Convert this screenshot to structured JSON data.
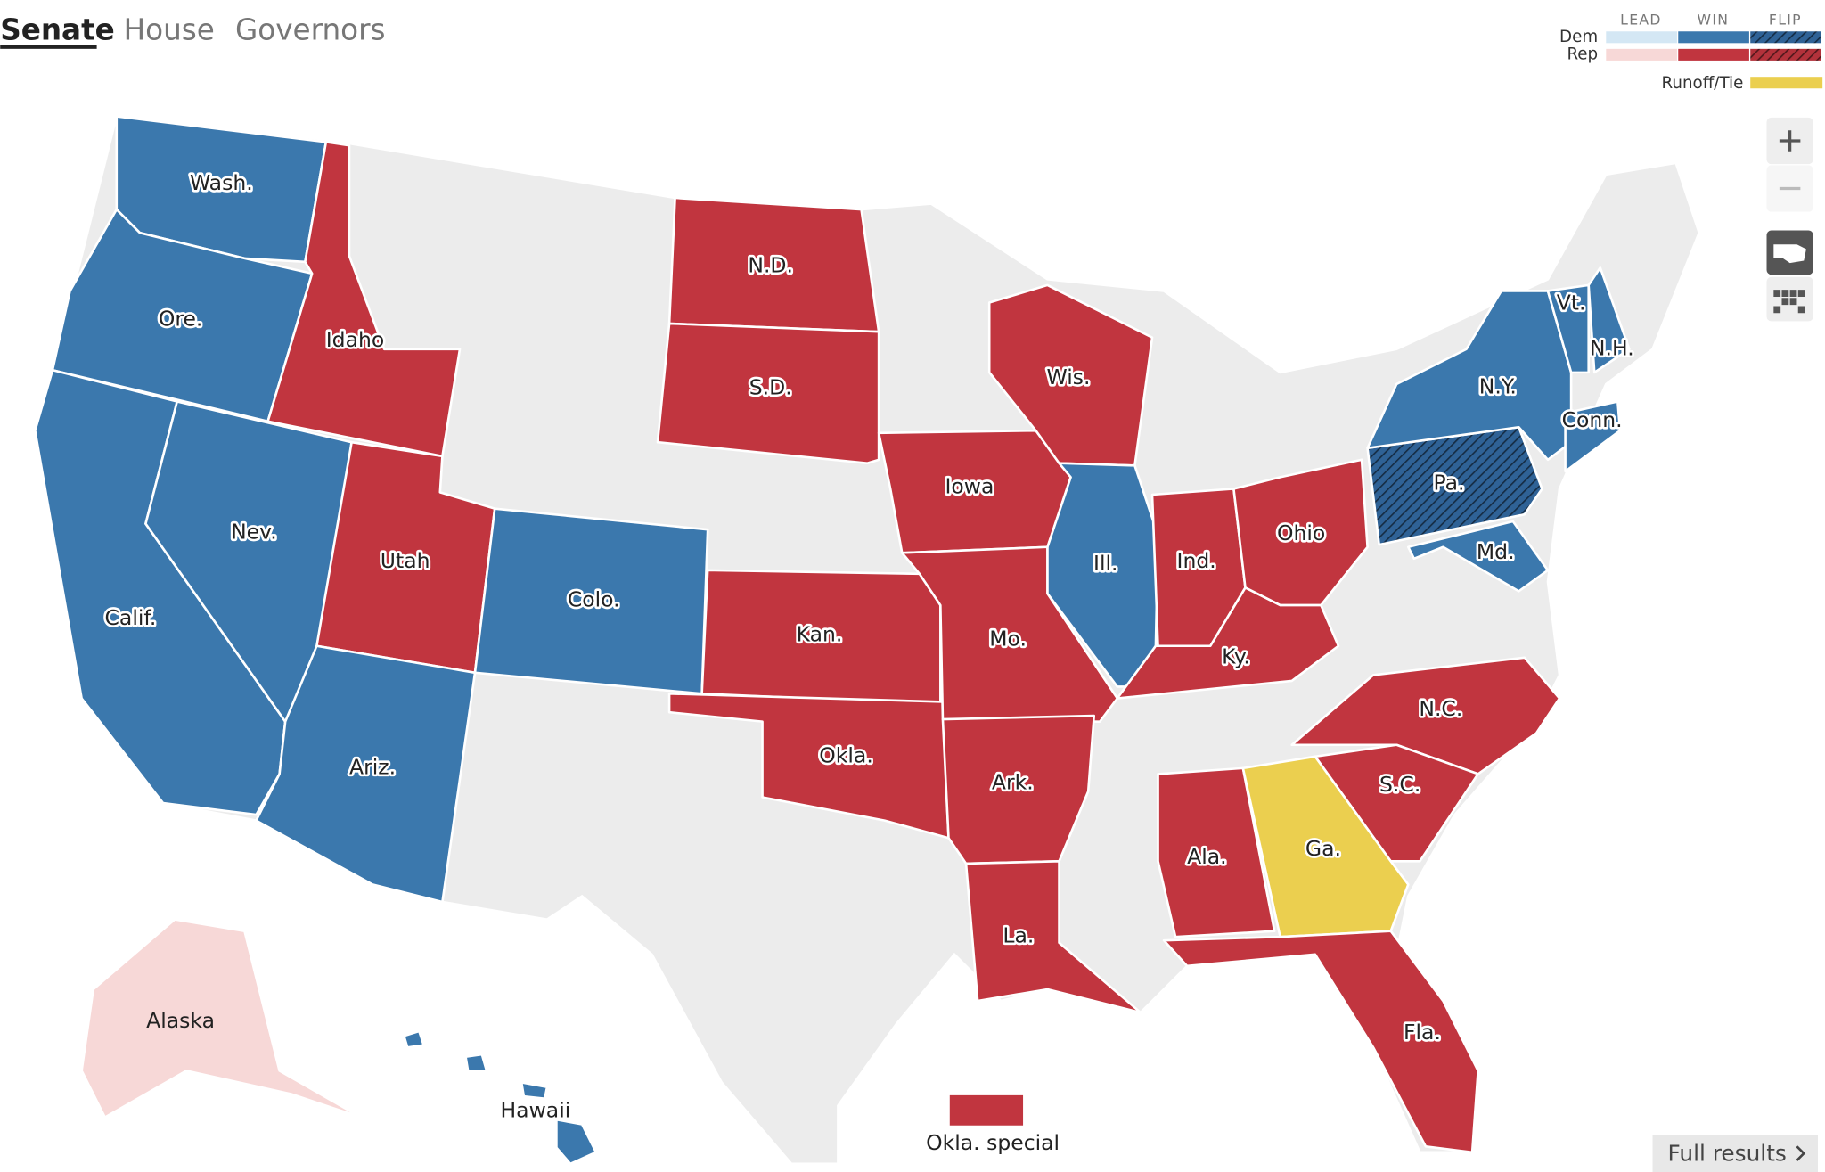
{
  "tabs": [
    "Senate",
    "House",
    "Governors"
  ],
  "legend": {
    "columns": [
      "LEAD",
      "WIN",
      "FLIP"
    ],
    "rows": [
      {
        "label": "Dem",
        "colors": [
          "#d4e7f4",
          "#3b78ad",
          "#2f6296"
        ]
      },
      {
        "label": "Rep",
        "colors": [
          "#f7d8d7",
          "#c1353f",
          "#b3323b"
        ]
      }
    ],
    "runoff": {
      "label": "Runoff/Tie",
      "color": "#ebcf4f"
    }
  },
  "no_race_color": "#ececec",
  "states": [
    {
      "label": "Wash.",
      "party": "Dem",
      "result": "WIN"
    },
    {
      "label": "Ore.",
      "party": "Dem",
      "result": "WIN"
    },
    {
      "label": "Calif.",
      "party": "Dem",
      "result": "WIN"
    },
    {
      "label": "Nev.",
      "party": "Dem",
      "result": "WIN"
    },
    {
      "label": "Idaho",
      "party": "Rep",
      "result": "WIN"
    },
    {
      "label": "Utah",
      "party": "Rep",
      "result": "WIN"
    },
    {
      "label": "Colo.",
      "party": "Dem",
      "result": "WIN"
    },
    {
      "label": "Ariz.",
      "party": "Dem",
      "result": "WIN"
    },
    {
      "label": "N.D.",
      "party": "Rep",
      "result": "WIN"
    },
    {
      "label": "S.D.",
      "party": "Rep",
      "result": "WIN"
    },
    {
      "label": "Kan.",
      "party": "Rep",
      "result": "WIN"
    },
    {
      "label": "Okla.",
      "party": "Rep",
      "result": "WIN"
    },
    {
      "label": "Iowa",
      "party": "Rep",
      "result": "WIN"
    },
    {
      "label": "Mo.",
      "party": "Rep",
      "result": "WIN"
    },
    {
      "label": "Ark.",
      "party": "Rep",
      "result": "WIN"
    },
    {
      "label": "La.",
      "party": "Rep",
      "result": "WIN"
    },
    {
      "label": "Wis.",
      "party": "Rep",
      "result": "WIN"
    },
    {
      "label": "Ill.",
      "party": "Dem",
      "result": "WIN"
    },
    {
      "label": "Ind.",
      "party": "Rep",
      "result": "WIN"
    },
    {
      "label": "Ohio",
      "party": "Rep",
      "result": "WIN"
    },
    {
      "label": "Ky.",
      "party": "Rep",
      "result": "WIN"
    },
    {
      "label": "N.C.",
      "party": "Rep",
      "result": "WIN"
    },
    {
      "label": "S.C.",
      "party": "Rep",
      "result": "WIN"
    },
    {
      "label": "Ala.",
      "party": "Rep",
      "result": "WIN"
    },
    {
      "label": "Ga.",
      "status": "Runoff/Tie"
    },
    {
      "label": "Fla.",
      "party": "Rep",
      "result": "WIN"
    },
    {
      "label": "Pa.",
      "party": "Dem",
      "result": "FLIP"
    },
    {
      "label": "Md.",
      "party": "Dem",
      "result": "WIN"
    },
    {
      "label": "N.Y.",
      "party": "Dem",
      "result": "WIN"
    },
    {
      "label": "Vt.",
      "party": "Dem",
      "result": "WIN"
    },
    {
      "label": "N.H.",
      "party": "Dem",
      "result": "WIN"
    },
    {
      "label": "Conn.",
      "party": "Dem",
      "result": "WIN"
    },
    {
      "label": "Alaska",
      "party": "Rep",
      "result": "LEAD"
    },
    {
      "label": "Hawaii",
      "party": "Dem",
      "result": "WIN"
    },
    {
      "label": "Okla. special",
      "party": "Rep",
      "result": "WIN"
    }
  ],
  "full_results": "Full results"
}
